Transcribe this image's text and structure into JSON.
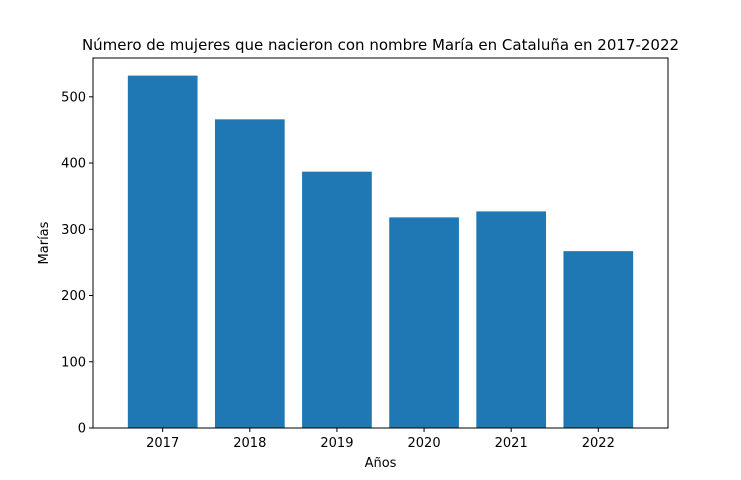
{
  "chart_data": {
    "type": "bar",
    "title": "Número de mujeres que nacieron con nombre María en Cataluña en 2017-2022",
    "xlabel": "Años",
    "ylabel": "Marías",
    "categories": [
      "2017",
      "2018",
      "2019",
      "2020",
      "2021",
      "2022"
    ],
    "values": [
      532,
      466,
      387,
      318,
      327,
      267
    ],
    "ylim": [
      0,
      558.6
    ],
    "yticks": [
      0,
      100,
      200,
      300,
      400,
      500
    ],
    "grid": false,
    "bar_color": "#1f77b4"
  }
}
